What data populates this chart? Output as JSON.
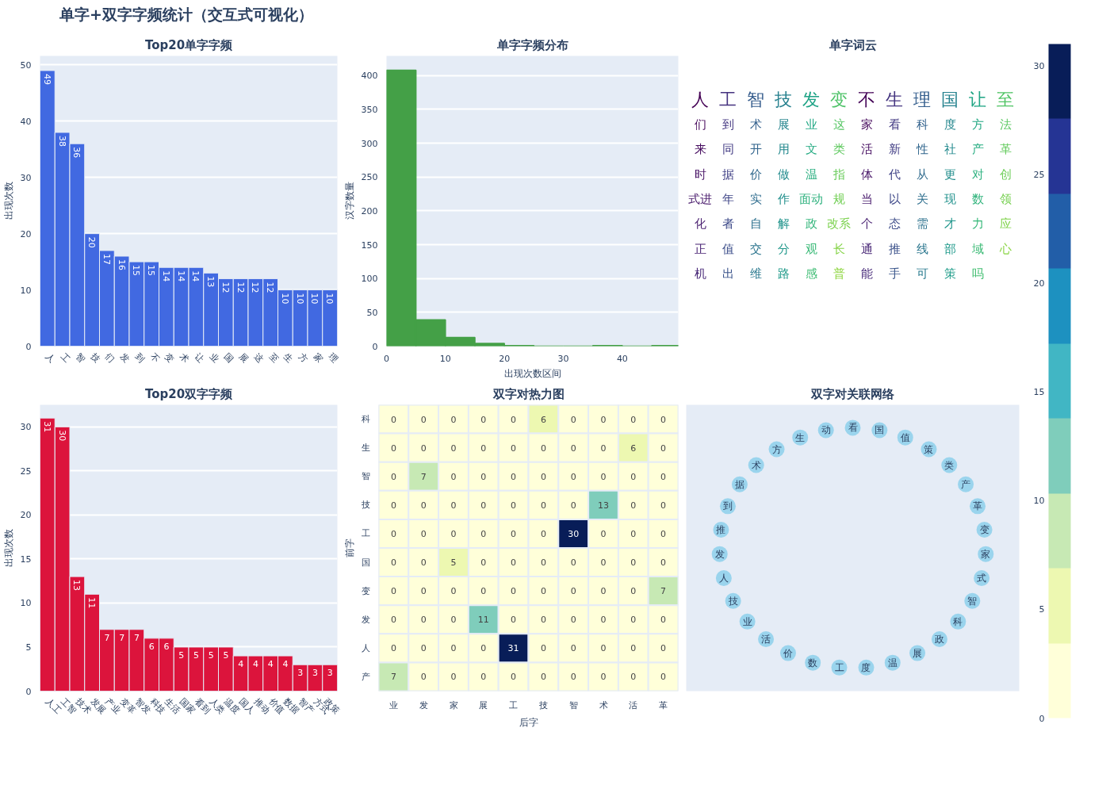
{
  "chart_data": [
    {
      "type": "bar",
      "title": "Top20单字字频",
      "ylabel": "出现次数",
      "annotations": [
        "单字+双字字频统计（交互式可视化）"
      ],
      "categories": [
        "人",
        "工",
        "智",
        "技",
        "们",
        "发",
        "到",
        "不",
        "变",
        "术",
        "让",
        "业",
        "国",
        "展",
        "这",
        "至",
        "生",
        "方",
        "家",
        "理"
      ],
      "values": [
        49,
        38,
        36,
        20,
        17,
        16,
        15,
        15,
        14,
        14,
        14,
        13,
        12,
        12,
        12,
        12,
        10,
        10,
        10,
        10
      ],
      "color": "#4169e1",
      "ylim": [
        0,
        51.6
      ],
      "yticks": [
        0,
        10,
        20,
        30,
        40,
        50
      ],
      "grid": "y",
      "data_labels": true
    },
    {
      "type": "histogram",
      "title": "单字字频分布",
      "xlabel": "出现次数区间",
      "ylabel": "汉字数量",
      "bins": [
        0,
        5,
        10,
        15,
        20,
        25,
        30,
        35,
        40,
        45,
        50
      ],
      "values": [
        408,
        39,
        13,
        4,
        1,
        0,
        0,
        1,
        0,
        1
      ],
      "color": "#44a047",
      "xlim": [
        0,
        49.5
      ],
      "xticks": [
        0,
        10,
        20,
        30,
        40
      ],
      "ylim": [
        0,
        429
      ],
      "yticks": [
        0,
        50,
        100,
        150,
        200,
        250,
        300,
        350,
        400
      ],
      "grid": "y"
    },
    {
      "type": "other",
      "title": "单字词云",
      "annotations": [
        "人",
        "工",
        "智",
        "技",
        "发",
        "变",
        "不",
        "生",
        "理",
        "国",
        "让",
        "至",
        "们",
        "到",
        "术",
        "展",
        "业",
        "这",
        "家",
        "看",
        "科",
        "度",
        "方",
        "法",
        "来",
        "同",
        "开",
        "用",
        "文",
        "类",
        "活",
        "新",
        "性",
        "社",
        "产",
        "革",
        "时",
        "据",
        "价",
        "做",
        "温",
        "指",
        "体",
        "代",
        "从",
        "更",
        "对",
        "创",
        "式进",
        "年",
        "实",
        "作",
        "面动",
        "规",
        "当",
        "以",
        "关",
        "现",
        "数",
        "领",
        "化",
        "者",
        "自",
        "解",
        "政",
        "改系",
        "个",
        "态",
        "需",
        "才",
        "力",
        "应",
        "正",
        "值",
        "交",
        "分",
        "观",
        "长",
        "通",
        "推",
        "线",
        "部",
        "域",
        "心",
        "机",
        "出",
        "维",
        "路",
        "感",
        "普",
        "能",
        "手",
        "可",
        "策",
        "吗"
      ]
    },
    {
      "type": "bar",
      "title": "Top20双字字频",
      "ylabel": "出现次数",
      "categories": [
        "人工",
        "工智",
        "技术",
        "发展",
        "产业",
        "变革",
        "智发",
        "科技",
        "生活",
        "国家",
        "看到",
        "人类",
        "温度",
        "国人",
        "推动",
        "价值",
        "数据",
        "智产",
        "方式",
        "政策"
      ],
      "values": [
        31,
        30,
        13,
        11,
        7,
        7,
        7,
        6,
        6,
        5,
        5,
        5,
        5,
        4,
        4,
        4,
        4,
        3,
        3,
        3
      ],
      "color": "#dc143c",
      "ylim": [
        0,
        32.5
      ],
      "yticks": [
        0,
        5,
        10,
        15,
        20,
        25,
        30
      ],
      "grid": "y",
      "data_labels": true
    },
    {
      "type": "heatmap",
      "title": "双字对热力图",
      "xlabel": "后字",
      "ylabel": "前字",
      "categories": [
        "业",
        "发",
        "家",
        "展",
        "工",
        "技",
        "智",
        "术",
        "活",
        "革"
      ],
      "y_categories": [
        "科",
        "生",
        "智",
        "技",
        "工",
        "国",
        "变",
        "发",
        "人",
        "产"
      ],
      "cells": [
        [
          0,
          0,
          0,
          0,
          0,
          6,
          0,
          0,
          0,
          0
        ],
        [
          0,
          0,
          0,
          0,
          0,
          0,
          0,
          0,
          6,
          0
        ],
        [
          0,
          7,
          0,
          0,
          0,
          0,
          0,
          0,
          0,
          0
        ],
        [
          0,
          0,
          0,
          0,
          0,
          0,
          0,
          13,
          0,
          0
        ],
        [
          0,
          0,
          0,
          0,
          0,
          0,
          30,
          0,
          0,
          0
        ],
        [
          0,
          0,
          5,
          0,
          0,
          0,
          0,
          0,
          0,
          0
        ],
        [
          0,
          0,
          0,
          0,
          0,
          0,
          0,
          0,
          0,
          7
        ],
        [
          0,
          0,
          0,
          11,
          0,
          0,
          0,
          0,
          0,
          0
        ],
        [
          0,
          0,
          0,
          0,
          31,
          0,
          0,
          0,
          0,
          0
        ],
        [
          7,
          0,
          0,
          0,
          0,
          0,
          0,
          0,
          0,
          0
        ]
      ],
      "clim": [
        0,
        31
      ],
      "cticks": [
        0,
        5,
        10,
        15,
        20,
        25,
        30
      ],
      "data_labels": true
    },
    {
      "type": "other",
      "title": "双字对关联网络",
      "annotations": [
        "看",
        "动",
        "生",
        "方",
        "术",
        "据",
        "到",
        "推",
        "发",
        "人",
        "技",
        "业",
        "活",
        "价",
        "数",
        "工",
        "度",
        "温",
        "展",
        "政",
        "科",
        "智",
        "式",
        "家",
        "变",
        "革",
        "产",
        "类",
        "策",
        "值",
        "国"
      ]
    }
  ]
}
